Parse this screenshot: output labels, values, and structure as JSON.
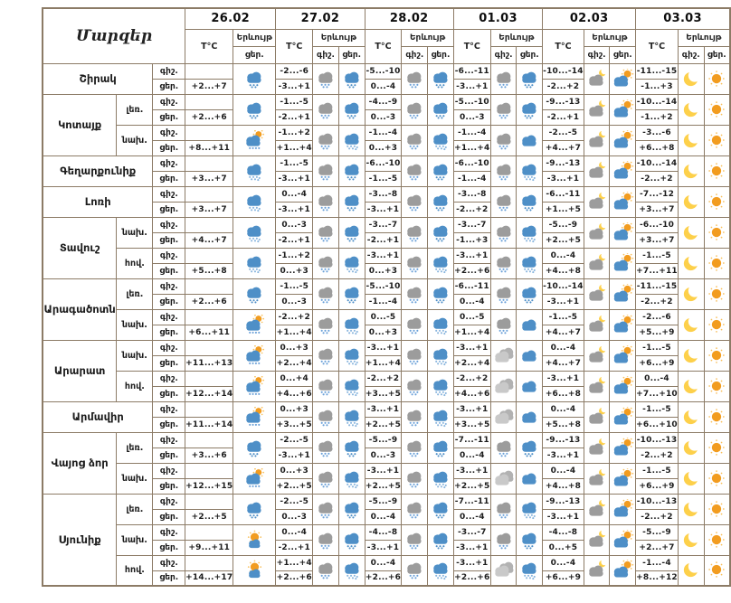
{
  "header": {
    "regions_label": "Մարզեր",
    "temp_label": "T°C",
    "phenomenon_label": "Երևույթ",
    "night_label": "գիշ.",
    "day_label": "ցեր.",
    "dates": [
      "26.02",
      "27.02",
      "28.02",
      "01.03",
      "02.03",
      "03.03"
    ]
  },
  "colors": {
    "border": "#8c7b66",
    "cloud_blue": "#4e8fc7",
    "cloud_gray": "#9c9c9c",
    "cloud_light_gray": "#c9c9c9",
    "precip_dot_blue": "#6aa0d8",
    "precip_dot_light": "#8ab6de",
    "sun_orange": "#f29c1f",
    "sun_ray": "#f8c05c",
    "moon_yellow": "#fdd04a"
  },
  "icon_legend": {
    "rain-blue": "day cloud with precipitation",
    "snow-blue": "day cloud with heavy snow/sleet",
    "snow-gray": "night cloud with snow",
    "cloud-blue": "cloudy day",
    "cloud-gray": "cloudy night",
    "sun-rain": "sun with cloud and precipitation",
    "moon-cloud": "cloud with moon",
    "sun-cloud": "cloud with sun",
    "moon": "clear night",
    "sun": "clear day",
    "mostly-sunny": "mostly sunny"
  },
  "rows": [
    {
      "region": "Շիրակ",
      "zone": "",
      "d": [
        {
          "tn": "",
          "td": "+2...+7",
          "in": null,
          "id": "rain-blue"
        },
        {
          "tn": "-2...-6",
          "td": "-3...+1",
          "in": "snow-gray",
          "id": "rain-blue"
        },
        {
          "tn": "-5...-10",
          "td": "0...-4",
          "in": "snow-gray",
          "id": "rain-blue"
        },
        {
          "tn": "-6...-11",
          "td": "-3...+1",
          "in": "snow-gray",
          "id": "rain-blue"
        },
        {
          "tn": "-10...-14",
          "td": "-2...+2",
          "in": "moon-cloud",
          "id": "sun-cloud"
        },
        {
          "tn": "-11...-15",
          "td": "-1...+3",
          "in": "moon",
          "id": "sun"
        }
      ]
    },
    {
      "region": "Կոտայք",
      "zone": "լեռ.",
      "d": [
        {
          "tn": "",
          "td": "+2...+6",
          "in": null,
          "id": "rain-blue"
        },
        {
          "tn": "-1...-5",
          "td": "-2...+1",
          "in": "snow-gray",
          "id": "rain-blue"
        },
        {
          "tn": "-4...-9",
          "td": "0...-3",
          "in": "snow-gray",
          "id": "rain-blue"
        },
        {
          "tn": "-5...-10",
          "td": "0...-3",
          "in": "snow-gray",
          "id": "rain-blue"
        },
        {
          "tn": "-9...-13",
          "td": "-2...+1",
          "in": "moon-cloud",
          "id": "sun-cloud"
        },
        {
          "tn": "-10...-14",
          "td": "-1...+2",
          "in": "moon",
          "id": "sun"
        }
      ]
    },
    {
      "region": "Կոտայք",
      "zone": "նախ.",
      "d": [
        {
          "tn": "",
          "td": "+8...+11",
          "in": null,
          "id": "sun-rain"
        },
        {
          "tn": "-1...+2",
          "td": "+1...+4",
          "in": "snow-gray",
          "id": "snow-blue"
        },
        {
          "tn": "-1...-4",
          "td": "0...+3",
          "in": "snow-gray",
          "id": "snow-blue"
        },
        {
          "tn": "-1...-4",
          "td": "+1...+4",
          "in": "snow-gray",
          "id": "cloud-blue"
        },
        {
          "tn": "-2...-5",
          "td": "+4...+7",
          "in": "moon-cloud",
          "id": "sun-cloud"
        },
        {
          "tn": "-3...-6",
          "td": "+6...+8",
          "in": "moon",
          "id": "sun"
        }
      ]
    },
    {
      "region": "Գեղարքունիք",
      "zone": "",
      "d": [
        {
          "tn": "",
          "td": "+3...+7",
          "in": null,
          "id": "snow-blue"
        },
        {
          "tn": "-1...-5",
          "td": "-3...+1",
          "in": "snow-gray",
          "id": "rain-blue"
        },
        {
          "tn": "-6...-10",
          "td": "-1...-5",
          "in": "snow-gray",
          "id": "rain-blue"
        },
        {
          "tn": "-6...-10",
          "td": "-1...-4",
          "in": "snow-gray",
          "id": "snow-blue"
        },
        {
          "tn": "-9...-13",
          "td": "-3...+1",
          "in": "moon-cloud",
          "id": "sun-cloud"
        },
        {
          "tn": "-10...-14",
          "td": "-2...+2",
          "in": "moon",
          "id": "sun"
        }
      ]
    },
    {
      "region": "Լոռի",
      "zone": "",
      "d": [
        {
          "tn": "",
          "td": "+3...+7",
          "in": null,
          "id": "snow-blue"
        },
        {
          "tn": "0...-4",
          "td": "-3...+1",
          "in": "snow-gray",
          "id": "rain-blue"
        },
        {
          "tn": "-3...-8",
          "td": "-3...+1",
          "in": "snow-gray",
          "id": "rain-blue"
        },
        {
          "tn": "-3...-8",
          "td": "-2...+2",
          "in": "snow-gray",
          "id": "rain-blue"
        },
        {
          "tn": "-6...-11",
          "td": "+1...+5",
          "in": "moon-cloud",
          "id": "sun-cloud"
        },
        {
          "tn": "-7...-12",
          "td": "+3...+7",
          "in": "moon",
          "id": "sun"
        }
      ]
    },
    {
      "region": "Տավուշ",
      "zone": "նախ.",
      "d": [
        {
          "tn": "",
          "td": "+4...+7",
          "in": null,
          "id": "snow-blue"
        },
        {
          "tn": "0...-3",
          "td": "-2...+1",
          "in": "snow-gray",
          "id": "rain-blue"
        },
        {
          "tn": "-3...-7",
          "td": "-2...+1",
          "in": "snow-gray",
          "id": "rain-blue"
        },
        {
          "tn": "-3...-7",
          "td": "-1...+3",
          "in": "snow-gray",
          "id": "snow-blue"
        },
        {
          "tn": "-5...-9",
          "td": "+2...+5",
          "in": "moon-cloud",
          "id": "sun-cloud"
        },
        {
          "tn": "-6...-10",
          "td": "+3...+7",
          "in": "moon",
          "id": "sun"
        }
      ]
    },
    {
      "region": "Տավուշ",
      "zone": "հով.",
      "d": [
        {
          "tn": "",
          "td": "+5...+8",
          "in": null,
          "id": "snow-blue"
        },
        {
          "tn": "-1...+2",
          "td": "0...+3",
          "in": "snow-gray",
          "id": "snow-blue"
        },
        {
          "tn": "-3...+1",
          "td": "0...+3",
          "in": "snow-gray",
          "id": "snow-blue"
        },
        {
          "tn": "-3...+1",
          "td": "+2...+6",
          "in": "snow-gray",
          "id": "snow-blue"
        },
        {
          "tn": "0...-4",
          "td": "+4...+8",
          "in": "moon-cloud",
          "id": "sun-cloud"
        },
        {
          "tn": "-1...-5",
          "td": "+7...+11",
          "in": "moon",
          "id": "sun"
        }
      ]
    },
    {
      "region": "Արագածոտն",
      "zone": "լեռ.",
      "d": [
        {
          "tn": "",
          "td": "+2...+6",
          "in": null,
          "id": "rain-blue"
        },
        {
          "tn": "-1...-5",
          "td": "0...-3",
          "in": "snow-gray",
          "id": "rain-blue"
        },
        {
          "tn": "-5...-10",
          "td": "-1...-4",
          "in": "snow-gray",
          "id": "rain-blue"
        },
        {
          "tn": "-6...-11",
          "td": "0...-4",
          "in": "snow-gray",
          "id": "rain-blue"
        },
        {
          "tn": "-10...-14",
          "td": "-3...+1",
          "in": "moon-cloud",
          "id": "sun-cloud"
        },
        {
          "tn": "-11...-15",
          "td": "-2...+2",
          "in": "moon",
          "id": "sun"
        }
      ]
    },
    {
      "region": "Արագածոտն",
      "zone": "նախ.",
      "d": [
        {
          "tn": "",
          "td": "+6...+11",
          "in": null,
          "id": "sun-rain"
        },
        {
          "tn": "-2...+2",
          "td": "+1...+4",
          "in": "snow-gray",
          "id": "snow-blue"
        },
        {
          "tn": "0...-5",
          "td": "0...+3",
          "in": "snow-gray",
          "id": "snow-blue"
        },
        {
          "tn": "0...-5",
          "td": "+1...+4",
          "in": "snow-gray",
          "id": "cloud-blue"
        },
        {
          "tn": "-1...-5",
          "td": "+4...+7",
          "in": "moon-cloud",
          "id": "sun-cloud"
        },
        {
          "tn": "-2...-6",
          "td": "+5...+9",
          "in": "moon",
          "id": "sun"
        }
      ]
    },
    {
      "region": "Արարատ",
      "zone": "նախ.",
      "d": [
        {
          "tn": "",
          "td": "+11...+13",
          "in": null,
          "id": "sun-rain"
        },
        {
          "tn": "0...+3",
          "td": "+2...+4",
          "in": "snow-gray",
          "id": "snow-blue"
        },
        {
          "tn": "-3...+1",
          "td": "+1...+4",
          "in": "snow-gray",
          "id": "snow-blue"
        },
        {
          "tn": "-3...+1",
          "td": "+2...+4",
          "in": "cloud-gray",
          "id": "cloud-blue"
        },
        {
          "tn": "0...-4",
          "td": "+4...+7",
          "in": "moon-cloud",
          "id": "sun-cloud"
        },
        {
          "tn": "-1...-5",
          "td": "+6...+9",
          "in": "moon",
          "id": "sun"
        }
      ]
    },
    {
      "region": "Արարատ",
      "zone": "հով.",
      "d": [
        {
          "tn": "",
          "td": "+12...+14",
          "in": null,
          "id": "sun-rain"
        },
        {
          "tn": "0...+4",
          "td": "+4...+6",
          "in": "snow-gray",
          "id": "snow-blue"
        },
        {
          "tn": "-2...+2",
          "td": "+3...+5",
          "in": "snow-gray",
          "id": "snow-blue"
        },
        {
          "tn": "-2...+2",
          "td": "+4...+6",
          "in": "cloud-gray",
          "id": "cloud-blue"
        },
        {
          "tn": "-3...+1",
          "td": "+6...+8",
          "in": "moon-cloud",
          "id": "sun-cloud"
        },
        {
          "tn": "0...-4",
          "td": "+7...+10",
          "in": "moon",
          "id": "sun"
        }
      ]
    },
    {
      "region": "Արմավիր",
      "zone": "",
      "d": [
        {
          "tn": "",
          "td": "+11...+14",
          "in": null,
          "id": "sun-rain"
        },
        {
          "tn": "0...+3",
          "td": "+3...+5",
          "in": "snow-gray",
          "id": "snow-blue"
        },
        {
          "tn": "-3...+1",
          "td": "+2...+5",
          "in": "snow-gray",
          "id": "snow-blue"
        },
        {
          "tn": "-3...+1",
          "td": "+3...+5",
          "in": "cloud-gray",
          "id": "cloud-blue"
        },
        {
          "tn": "0...-4",
          "td": "+5...+8",
          "in": "moon-cloud",
          "id": "sun-cloud"
        },
        {
          "tn": "-1...-5",
          "td": "+6...+10",
          "in": "moon",
          "id": "sun"
        }
      ]
    },
    {
      "region": "Վայոց ձոր",
      "zone": "լեռ.",
      "d": [
        {
          "tn": "",
          "td": "+3...+6",
          "in": null,
          "id": "rain-blue"
        },
        {
          "tn": "-2...-5",
          "td": "-3...+1",
          "in": "snow-gray",
          "id": "rain-blue"
        },
        {
          "tn": "-5...-9",
          "td": "0...-3",
          "in": "snow-gray",
          "id": "rain-blue"
        },
        {
          "tn": "-7...-11",
          "td": "0...-4",
          "in": "snow-gray",
          "id": "rain-blue"
        },
        {
          "tn": "-9...-13",
          "td": "-3...+1",
          "in": "moon-cloud",
          "id": "sun-cloud"
        },
        {
          "tn": "-10...-13",
          "td": "-2...+2",
          "in": "moon",
          "id": "sun"
        }
      ]
    },
    {
      "region": "Վայոց ձոր",
      "zone": "նախ.",
      "d": [
        {
          "tn": "",
          "td": "+12...+15",
          "in": null,
          "id": "sun-rain"
        },
        {
          "tn": "0...+3",
          "td": "+2...+5",
          "in": "snow-gray",
          "id": "snow-blue"
        },
        {
          "tn": "-3...+1",
          "td": "+2...+5",
          "in": "snow-gray",
          "id": "snow-blue"
        },
        {
          "tn": "-3...+1",
          "td": "+2...+5",
          "in": "cloud-gray",
          "id": "cloud-blue"
        },
        {
          "tn": "0...-4",
          "td": "+4...+8",
          "in": "moon-cloud",
          "id": "sun-cloud"
        },
        {
          "tn": "-1...-5",
          "td": "+6...+9",
          "in": "moon",
          "id": "sun"
        }
      ]
    },
    {
      "region": "Սյունիք",
      "zone": "լեռ.",
      "d": [
        {
          "tn": "",
          "td": "+2...+5",
          "in": null,
          "id": "rain-blue"
        },
        {
          "tn": "-2...-5",
          "td": "0...-3",
          "in": "snow-gray",
          "id": "rain-blue"
        },
        {
          "tn": "-5...-9",
          "td": "0...-4",
          "in": "snow-gray",
          "id": "rain-blue"
        },
        {
          "tn": "-7...-11",
          "td": "0...-4",
          "in": "snow-gray",
          "id": "snow-blue"
        },
        {
          "tn": "-9...-13",
          "td": "-3...+1",
          "in": "moon-cloud",
          "id": "sun-cloud"
        },
        {
          "tn": "-10...-13",
          "td": "-2...+2",
          "in": "moon",
          "id": "sun"
        }
      ]
    },
    {
      "region": "Սյունիք",
      "zone": "նախ.",
      "d": [
        {
          "tn": "",
          "td": "+9...+11",
          "in": null,
          "id": "mostly-sunny"
        },
        {
          "tn": "0...-4",
          "td": "-2...+1",
          "in": "snow-gray",
          "id": "rain-blue"
        },
        {
          "tn": "-4...-8",
          "td": "-3...+1",
          "in": "snow-gray",
          "id": "rain-blue"
        },
        {
          "tn": "-3...-7",
          "td": "-3...+1",
          "in": "snow-gray",
          "id": "rain-blue"
        },
        {
          "tn": "-4...-8",
          "td": "0...+5",
          "in": "moon-cloud",
          "id": "sun-cloud"
        },
        {
          "tn": "-5...-9",
          "td": "+2...+7",
          "in": "moon",
          "id": "sun"
        }
      ]
    },
    {
      "region": "Սյունիք",
      "zone": "հով.",
      "d": [
        {
          "tn": "",
          "td": "+14...+17",
          "in": null,
          "id": "mostly-sunny"
        },
        {
          "tn": "+1...+4",
          "td": "+2...+6",
          "in": "snow-gray",
          "id": "snow-blue"
        },
        {
          "tn": "0...-4",
          "td": "+2...+6",
          "in": "snow-gray",
          "id": "snow-blue"
        },
        {
          "tn": "-3...+1",
          "td": "+2...+6",
          "in": "cloud-gray",
          "id": "snow-blue"
        },
        {
          "tn": "0...-4",
          "td": "+6...+9",
          "in": "moon-cloud",
          "id": "sun-cloud"
        },
        {
          "tn": "-1...-4",
          "td": "+8...+12",
          "in": "moon",
          "id": "sun"
        }
      ]
    }
  ]
}
